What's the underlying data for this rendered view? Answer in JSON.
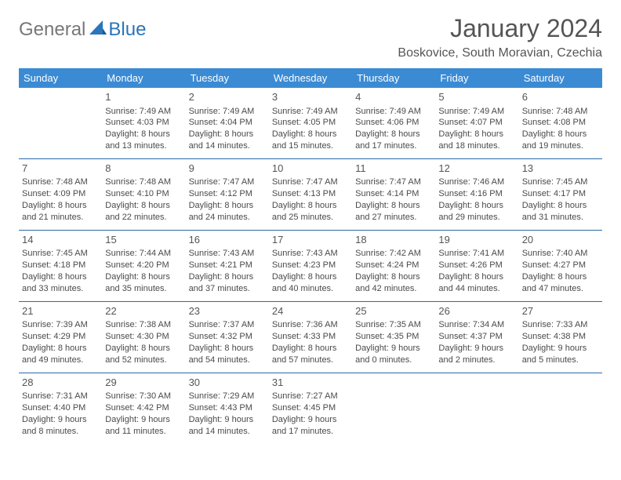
{
  "brand": {
    "part1": "General",
    "part2": "Blue"
  },
  "title": "January 2024",
  "location": "Boskovice, South Moravian, Czechia",
  "colors": {
    "header_bg": "#3b8bd4",
    "row_divider": "#2a6aa8",
    "brand_blue": "#2a75bb",
    "text": "#4a4a4a",
    "background": "#ffffff"
  },
  "weekdays": [
    "Sunday",
    "Monday",
    "Tuesday",
    "Wednesday",
    "Thursday",
    "Friday",
    "Saturday"
  ],
  "weeks": [
    [
      null,
      {
        "n": "1",
        "sr": "Sunrise: 7:49 AM",
        "ss": "Sunset: 4:03 PM",
        "dl1": "Daylight: 8 hours",
        "dl2": "and 13 minutes."
      },
      {
        "n": "2",
        "sr": "Sunrise: 7:49 AM",
        "ss": "Sunset: 4:04 PM",
        "dl1": "Daylight: 8 hours",
        "dl2": "and 14 minutes."
      },
      {
        "n": "3",
        "sr": "Sunrise: 7:49 AM",
        "ss": "Sunset: 4:05 PM",
        "dl1": "Daylight: 8 hours",
        "dl2": "and 15 minutes."
      },
      {
        "n": "4",
        "sr": "Sunrise: 7:49 AM",
        "ss": "Sunset: 4:06 PM",
        "dl1": "Daylight: 8 hours",
        "dl2": "and 17 minutes."
      },
      {
        "n": "5",
        "sr": "Sunrise: 7:49 AM",
        "ss": "Sunset: 4:07 PM",
        "dl1": "Daylight: 8 hours",
        "dl2": "and 18 minutes."
      },
      {
        "n": "6",
        "sr": "Sunrise: 7:48 AM",
        "ss": "Sunset: 4:08 PM",
        "dl1": "Daylight: 8 hours",
        "dl2": "and 19 minutes."
      }
    ],
    [
      {
        "n": "7",
        "sr": "Sunrise: 7:48 AM",
        "ss": "Sunset: 4:09 PM",
        "dl1": "Daylight: 8 hours",
        "dl2": "and 21 minutes."
      },
      {
        "n": "8",
        "sr": "Sunrise: 7:48 AM",
        "ss": "Sunset: 4:10 PM",
        "dl1": "Daylight: 8 hours",
        "dl2": "and 22 minutes."
      },
      {
        "n": "9",
        "sr": "Sunrise: 7:47 AM",
        "ss": "Sunset: 4:12 PM",
        "dl1": "Daylight: 8 hours",
        "dl2": "and 24 minutes."
      },
      {
        "n": "10",
        "sr": "Sunrise: 7:47 AM",
        "ss": "Sunset: 4:13 PM",
        "dl1": "Daylight: 8 hours",
        "dl2": "and 25 minutes."
      },
      {
        "n": "11",
        "sr": "Sunrise: 7:47 AM",
        "ss": "Sunset: 4:14 PM",
        "dl1": "Daylight: 8 hours",
        "dl2": "and 27 minutes."
      },
      {
        "n": "12",
        "sr": "Sunrise: 7:46 AM",
        "ss": "Sunset: 4:16 PM",
        "dl1": "Daylight: 8 hours",
        "dl2": "and 29 minutes."
      },
      {
        "n": "13",
        "sr": "Sunrise: 7:45 AM",
        "ss": "Sunset: 4:17 PM",
        "dl1": "Daylight: 8 hours",
        "dl2": "and 31 minutes."
      }
    ],
    [
      {
        "n": "14",
        "sr": "Sunrise: 7:45 AM",
        "ss": "Sunset: 4:18 PM",
        "dl1": "Daylight: 8 hours",
        "dl2": "and 33 minutes."
      },
      {
        "n": "15",
        "sr": "Sunrise: 7:44 AM",
        "ss": "Sunset: 4:20 PM",
        "dl1": "Daylight: 8 hours",
        "dl2": "and 35 minutes."
      },
      {
        "n": "16",
        "sr": "Sunrise: 7:43 AM",
        "ss": "Sunset: 4:21 PM",
        "dl1": "Daylight: 8 hours",
        "dl2": "and 37 minutes."
      },
      {
        "n": "17",
        "sr": "Sunrise: 7:43 AM",
        "ss": "Sunset: 4:23 PM",
        "dl1": "Daylight: 8 hours",
        "dl2": "and 40 minutes."
      },
      {
        "n": "18",
        "sr": "Sunrise: 7:42 AM",
        "ss": "Sunset: 4:24 PM",
        "dl1": "Daylight: 8 hours",
        "dl2": "and 42 minutes."
      },
      {
        "n": "19",
        "sr": "Sunrise: 7:41 AM",
        "ss": "Sunset: 4:26 PM",
        "dl1": "Daylight: 8 hours",
        "dl2": "and 44 minutes."
      },
      {
        "n": "20",
        "sr": "Sunrise: 7:40 AM",
        "ss": "Sunset: 4:27 PM",
        "dl1": "Daylight: 8 hours",
        "dl2": "and 47 minutes."
      }
    ],
    [
      {
        "n": "21",
        "sr": "Sunrise: 7:39 AM",
        "ss": "Sunset: 4:29 PM",
        "dl1": "Daylight: 8 hours",
        "dl2": "and 49 minutes."
      },
      {
        "n": "22",
        "sr": "Sunrise: 7:38 AM",
        "ss": "Sunset: 4:30 PM",
        "dl1": "Daylight: 8 hours",
        "dl2": "and 52 minutes."
      },
      {
        "n": "23",
        "sr": "Sunrise: 7:37 AM",
        "ss": "Sunset: 4:32 PM",
        "dl1": "Daylight: 8 hours",
        "dl2": "and 54 minutes."
      },
      {
        "n": "24",
        "sr": "Sunrise: 7:36 AM",
        "ss": "Sunset: 4:33 PM",
        "dl1": "Daylight: 8 hours",
        "dl2": "and 57 minutes."
      },
      {
        "n": "25",
        "sr": "Sunrise: 7:35 AM",
        "ss": "Sunset: 4:35 PM",
        "dl1": "Daylight: 9 hours",
        "dl2": "and 0 minutes."
      },
      {
        "n": "26",
        "sr": "Sunrise: 7:34 AM",
        "ss": "Sunset: 4:37 PM",
        "dl1": "Daylight: 9 hours",
        "dl2": "and 2 minutes."
      },
      {
        "n": "27",
        "sr": "Sunrise: 7:33 AM",
        "ss": "Sunset: 4:38 PM",
        "dl1": "Daylight: 9 hours",
        "dl2": "and 5 minutes."
      }
    ],
    [
      {
        "n": "28",
        "sr": "Sunrise: 7:31 AM",
        "ss": "Sunset: 4:40 PM",
        "dl1": "Daylight: 9 hours",
        "dl2": "and 8 minutes."
      },
      {
        "n": "29",
        "sr": "Sunrise: 7:30 AM",
        "ss": "Sunset: 4:42 PM",
        "dl1": "Daylight: 9 hours",
        "dl2": "and 11 minutes."
      },
      {
        "n": "30",
        "sr": "Sunrise: 7:29 AM",
        "ss": "Sunset: 4:43 PM",
        "dl1": "Daylight: 9 hours",
        "dl2": "and 14 minutes."
      },
      {
        "n": "31",
        "sr": "Sunrise: 7:27 AM",
        "ss": "Sunset: 4:45 PM",
        "dl1": "Daylight: 9 hours",
        "dl2": "and 17 minutes."
      },
      null,
      null,
      null
    ]
  ]
}
